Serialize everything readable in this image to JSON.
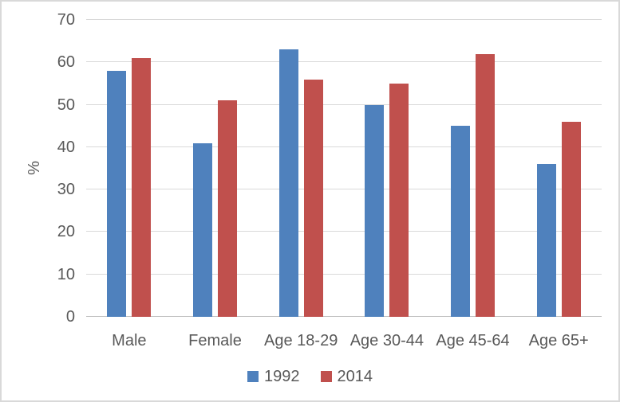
{
  "chart_data": {
    "type": "bar",
    "title": "",
    "categories": [
      "Male",
      "Female",
      "Age 18-29",
      "Age 30-44",
      "Age 45-64",
      "Age 65+"
    ],
    "series": [
      {
        "name": "1992",
        "color": "#4F81BD",
        "values": [
          58,
          41,
          63,
          50,
          45,
          36
        ]
      },
      {
        "name": "2014",
        "color": "#C0504D",
        "values": [
          61,
          51,
          56,
          55,
          62,
          46
        ]
      }
    ],
    "xlabel": "",
    "ylabel": "%",
    "ylim": [
      0,
      70
    ],
    "yticks": [
      0,
      10,
      20,
      30,
      40,
      50,
      60,
      70
    ],
    "grid": true,
    "legend_position": "bottom",
    "colors": {
      "grid": "#D9D9D9",
      "axis": "#BFBFBF",
      "text": "#595959",
      "chart_border": "#D9D9D9"
    }
  }
}
